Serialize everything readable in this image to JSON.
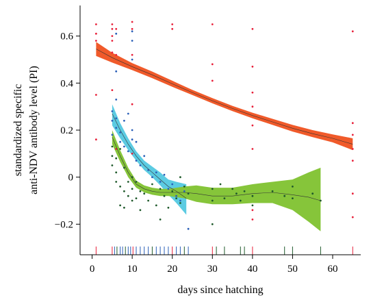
{
  "chart_data": {
    "type": "line",
    "xlabel": "days since hatching",
    "ylabel_lines": [
      "standardized specific",
      "anti-NDV antibody level (PI)"
    ],
    "xlim": [
      -3,
      67
    ],
    "ylim": [
      -0.33,
      0.73
    ],
    "xticks": [
      0,
      10,
      20,
      30,
      40,
      50,
      60
    ],
    "yticks": [
      {
        "value": 0.6,
        "label": "0.6"
      },
      {
        "value": 0.4,
        "label": "0.4"
      },
      {
        "value": 0.2,
        "label": "0.2"
      },
      {
        "value": 0,
        "label": "0"
      },
      {
        "value": -0.2,
        "label": "−0.2"
      }
    ],
    "series": [
      {
        "color": "#f05a2a",
        "dot_color": "#e8203a",
        "x": [
          1,
          5,
          10,
          15,
          20,
          25,
          30,
          35,
          40,
          45,
          50,
          55,
          60,
          65
        ],
        "y": [
          0.545,
          0.508,
          0.47,
          0.435,
          0.397,
          0.36,
          0.325,
          0.292,
          0.262,
          0.235,
          0.208,
          0.185,
          0.165,
          0.14
        ],
        "lower": [
          0.515,
          0.487,
          0.455,
          0.421,
          0.384,
          0.349,
          0.314,
          0.281,
          0.25,
          0.222,
          0.194,
          0.17,
          0.148,
          0.115
        ],
        "upper": [
          0.575,
          0.529,
          0.485,
          0.449,
          0.41,
          0.371,
          0.336,
          0.303,
          0.274,
          0.248,
          0.222,
          0.2,
          0.182,
          0.165
        ],
        "points": [
          [
            1,
            0.65
          ],
          [
            1,
            0.61
          ],
          [
            1,
            0.58
          ],
          [
            1,
            0.35
          ],
          [
            1,
            0.16
          ],
          [
            5,
            0.65
          ],
          [
            5,
            0.63
          ],
          [
            5,
            0.6
          ],
          [
            5,
            0.58
          ],
          [
            5,
            0.53
          ],
          [
            5,
            0.37
          ],
          [
            6,
            0.63
          ],
          [
            6,
            0.52
          ],
          [
            6,
            0.12
          ],
          [
            10,
            0.66
          ],
          [
            10,
            0.63
          ],
          [
            10,
            0.52
          ],
          [
            10,
            0.31
          ],
          [
            10,
            0.1
          ],
          [
            20,
            0.65
          ],
          [
            20,
            0.63
          ],
          [
            30,
            0.65
          ],
          [
            30,
            0.48
          ],
          [
            30,
            0.41
          ],
          [
            40,
            0.63
          ],
          [
            40,
            0.47
          ],
          [
            40,
            0.36
          ],
          [
            40,
            0.3
          ],
          [
            40,
            0.22
          ],
          [
            40,
            0.12
          ],
          [
            40,
            -0.14
          ],
          [
            40,
            -0.18
          ],
          [
            65,
            0.62
          ],
          [
            65,
            0.23
          ],
          [
            65,
            0.18
          ],
          [
            65,
            0.12
          ],
          [
            65,
            0.07
          ],
          [
            65,
            -0.07
          ],
          [
            65,
            -0.17
          ]
        ]
      },
      {
        "color": "#5ccbe2",
        "dot_color": "#2a5fb8",
        "x": [
          5,
          7,
          9,
          11,
          13,
          15,
          17,
          19,
          21,
          23.5
        ],
        "y": [
          0.27,
          0.2,
          0.14,
          0.09,
          0.05,
          0.02,
          -0.01,
          -0.04,
          -0.06,
          -0.09
        ],
        "lower": [
          0.22,
          0.165,
          0.115,
          0.07,
          0.03,
          0.0,
          -0.035,
          -0.075,
          -0.11,
          -0.16
        ],
        "upper": [
          0.31,
          0.23,
          0.165,
          0.11,
          0.07,
          0.045,
          0.02,
          -0.01,
          -0.02,
          -0.03
        ],
        "points": [
          [
            5,
            0.28
          ],
          [
            5,
            0.24
          ],
          [
            5,
            0.18
          ],
          [
            6,
            0.33
          ],
          [
            6,
            0.25
          ],
          [
            6,
            0.21
          ],
          [
            7,
            0.15
          ],
          [
            7,
            0.19
          ],
          [
            8,
            0.24
          ],
          [
            8,
            0.13
          ],
          [
            9,
            0.27
          ],
          [
            9,
            0.11
          ],
          [
            10,
            0.62
          ],
          [
            10,
            0.58
          ],
          [
            10,
            0.5
          ],
          [
            10,
            0.2
          ],
          [
            10,
            0.16
          ],
          [
            11,
            0.07
          ],
          [
            11,
            0.15
          ],
          [
            12,
            0.05
          ],
          [
            13,
            0.09
          ],
          [
            14,
            0.03
          ],
          [
            15,
            0.0
          ],
          [
            16,
            0.02
          ],
          [
            17,
            -0.02
          ],
          [
            18,
            0.01
          ],
          [
            19,
            -0.05
          ],
          [
            20,
            -0.03
          ],
          [
            21,
            -0.08
          ],
          [
            22,
            -0.1
          ],
          [
            23,
            -0.06
          ],
          [
            24,
            -0.22
          ],
          [
            6,
            0.61
          ],
          [
            6,
            0.45
          ]
        ]
      },
      {
        "color": "#86c53a",
        "dot_color": "#1f5a2b",
        "x": [
          5,
          7,
          9,
          11,
          13,
          15,
          17,
          19,
          21,
          23,
          26,
          30,
          35,
          40,
          45,
          50,
          54,
          57
        ],
        "y": [
          0.17,
          0.09,
          0.02,
          -0.03,
          -0.05,
          -0.06,
          -0.065,
          -0.065,
          -0.065,
          -0.065,
          -0.07,
          -0.08,
          -0.08,
          -0.07,
          -0.065,
          -0.075,
          -0.085,
          -0.1
        ],
        "lower": [
          0.14,
          0.065,
          0.0,
          -0.045,
          -0.065,
          -0.075,
          -0.08,
          -0.08,
          -0.085,
          -0.09,
          -0.105,
          -0.115,
          -0.115,
          -0.11,
          -0.11,
          -0.14,
          -0.19,
          -0.23
        ],
        "upper": [
          0.2,
          0.115,
          0.04,
          -0.015,
          -0.035,
          -0.045,
          -0.05,
          -0.05,
          -0.045,
          -0.04,
          -0.035,
          -0.045,
          -0.045,
          -0.03,
          -0.02,
          -0.01,
          0.02,
          0.04
        ],
        "points": [
          [
            5,
            0.13
          ],
          [
            5,
            0.09
          ],
          [
            5,
            0.05
          ],
          [
            6,
            0.08
          ],
          [
            6,
            0.02
          ],
          [
            6,
            -0.02
          ],
          [
            7,
            -0.04
          ],
          [
            7,
            -0.12
          ],
          [
            7,
            0.12
          ],
          [
            8,
            -0.06
          ],
          [
            8,
            0.04
          ],
          [
            8,
            -0.13
          ],
          [
            9,
            -0.02
          ],
          [
            9,
            -0.08
          ],
          [
            10,
            -0.05
          ],
          [
            10,
            0.0
          ],
          [
            10,
            -0.1
          ],
          [
            11,
            -0.02
          ],
          [
            11,
            -0.09
          ],
          [
            12,
            -0.06
          ],
          [
            12,
            -0.14
          ],
          [
            13,
            -0.07
          ],
          [
            14,
            -0.1
          ],
          [
            15,
            -0.03
          ],
          [
            16,
            -0.12
          ],
          [
            17,
            -0.05
          ],
          [
            17,
            -0.18
          ],
          [
            18,
            -0.08
          ],
          [
            19,
            -0.13
          ],
          [
            20,
            -0.06
          ],
          [
            21,
            -0.09
          ],
          [
            22,
            -0.11
          ],
          [
            22,
            0.0
          ],
          [
            23,
            -0.04
          ],
          [
            24,
            -0.07
          ],
          [
            30,
            -0.05
          ],
          [
            30,
            -0.1
          ],
          [
            30,
            -0.2
          ],
          [
            32,
            -0.03
          ],
          [
            33,
            -0.09
          ],
          [
            35,
            -0.05
          ],
          [
            36,
            -0.07
          ],
          [
            37,
            -0.1
          ],
          [
            38,
            -0.06
          ],
          [
            40,
            -0.08
          ],
          [
            40,
            -0.12
          ],
          [
            45,
            -0.06
          ],
          [
            48,
            -0.08
          ],
          [
            50,
            -0.04
          ],
          [
            50,
            -0.09
          ],
          [
            55,
            -0.07
          ],
          [
            57,
            -0.1
          ]
        ]
      }
    ],
    "rug": [
      {
        "x": 1,
        "color": "#e8203a"
      },
      {
        "x": 5,
        "color": "#e8203a"
      },
      {
        "x": 5.6,
        "color": "#2a5fb8"
      },
      {
        "x": 6.2,
        "color": "#1f5a2b"
      },
      {
        "x": 7,
        "color": "#2a5fb8"
      },
      {
        "x": 7.6,
        "color": "#2a5fb8"
      },
      {
        "x": 8.3,
        "color": "#1f5a2b"
      },
      {
        "x": 9,
        "color": "#2a5fb8"
      },
      {
        "x": 9.6,
        "color": "#2a5fb8"
      },
      {
        "x": 10.2,
        "color": "#e8203a"
      },
      {
        "x": 11,
        "color": "#2a5fb8"
      },
      {
        "x": 12,
        "color": "#2a5fb8"
      },
      {
        "x": 13,
        "color": "#2a5fb8"
      },
      {
        "x": 14,
        "color": "#2a5fb8"
      },
      {
        "x": 15,
        "color": "#1f5a2b"
      },
      {
        "x": 16,
        "color": "#2a5fb8"
      },
      {
        "x": 17,
        "color": "#2a5fb8"
      },
      {
        "x": 18,
        "color": "#2a5fb8"
      },
      {
        "x": 19,
        "color": "#2a5fb8"
      },
      {
        "x": 20,
        "color": "#e8203a"
      },
      {
        "x": 21,
        "color": "#2a5fb8"
      },
      {
        "x": 22,
        "color": "#2a5fb8"
      },
      {
        "x": 23,
        "color": "#1f5a2b"
      },
      {
        "x": 24,
        "color": "#2a5fb8"
      },
      {
        "x": 30,
        "color": "#e8203a"
      },
      {
        "x": 31,
        "color": "#1f5a2b"
      },
      {
        "x": 33,
        "color": "#1f5a2b"
      },
      {
        "x": 37,
        "color": "#1f5a2b"
      },
      {
        "x": 38,
        "color": "#1f5a2b"
      },
      {
        "x": 40,
        "color": "#e8203a"
      },
      {
        "x": 48,
        "color": "#1f5a2b"
      },
      {
        "x": 50,
        "color": "#1f5a2b"
      },
      {
        "x": 57,
        "color": "#1f5a2b"
      },
      {
        "x": 65,
        "color": "#e8203a"
      }
    ]
  }
}
